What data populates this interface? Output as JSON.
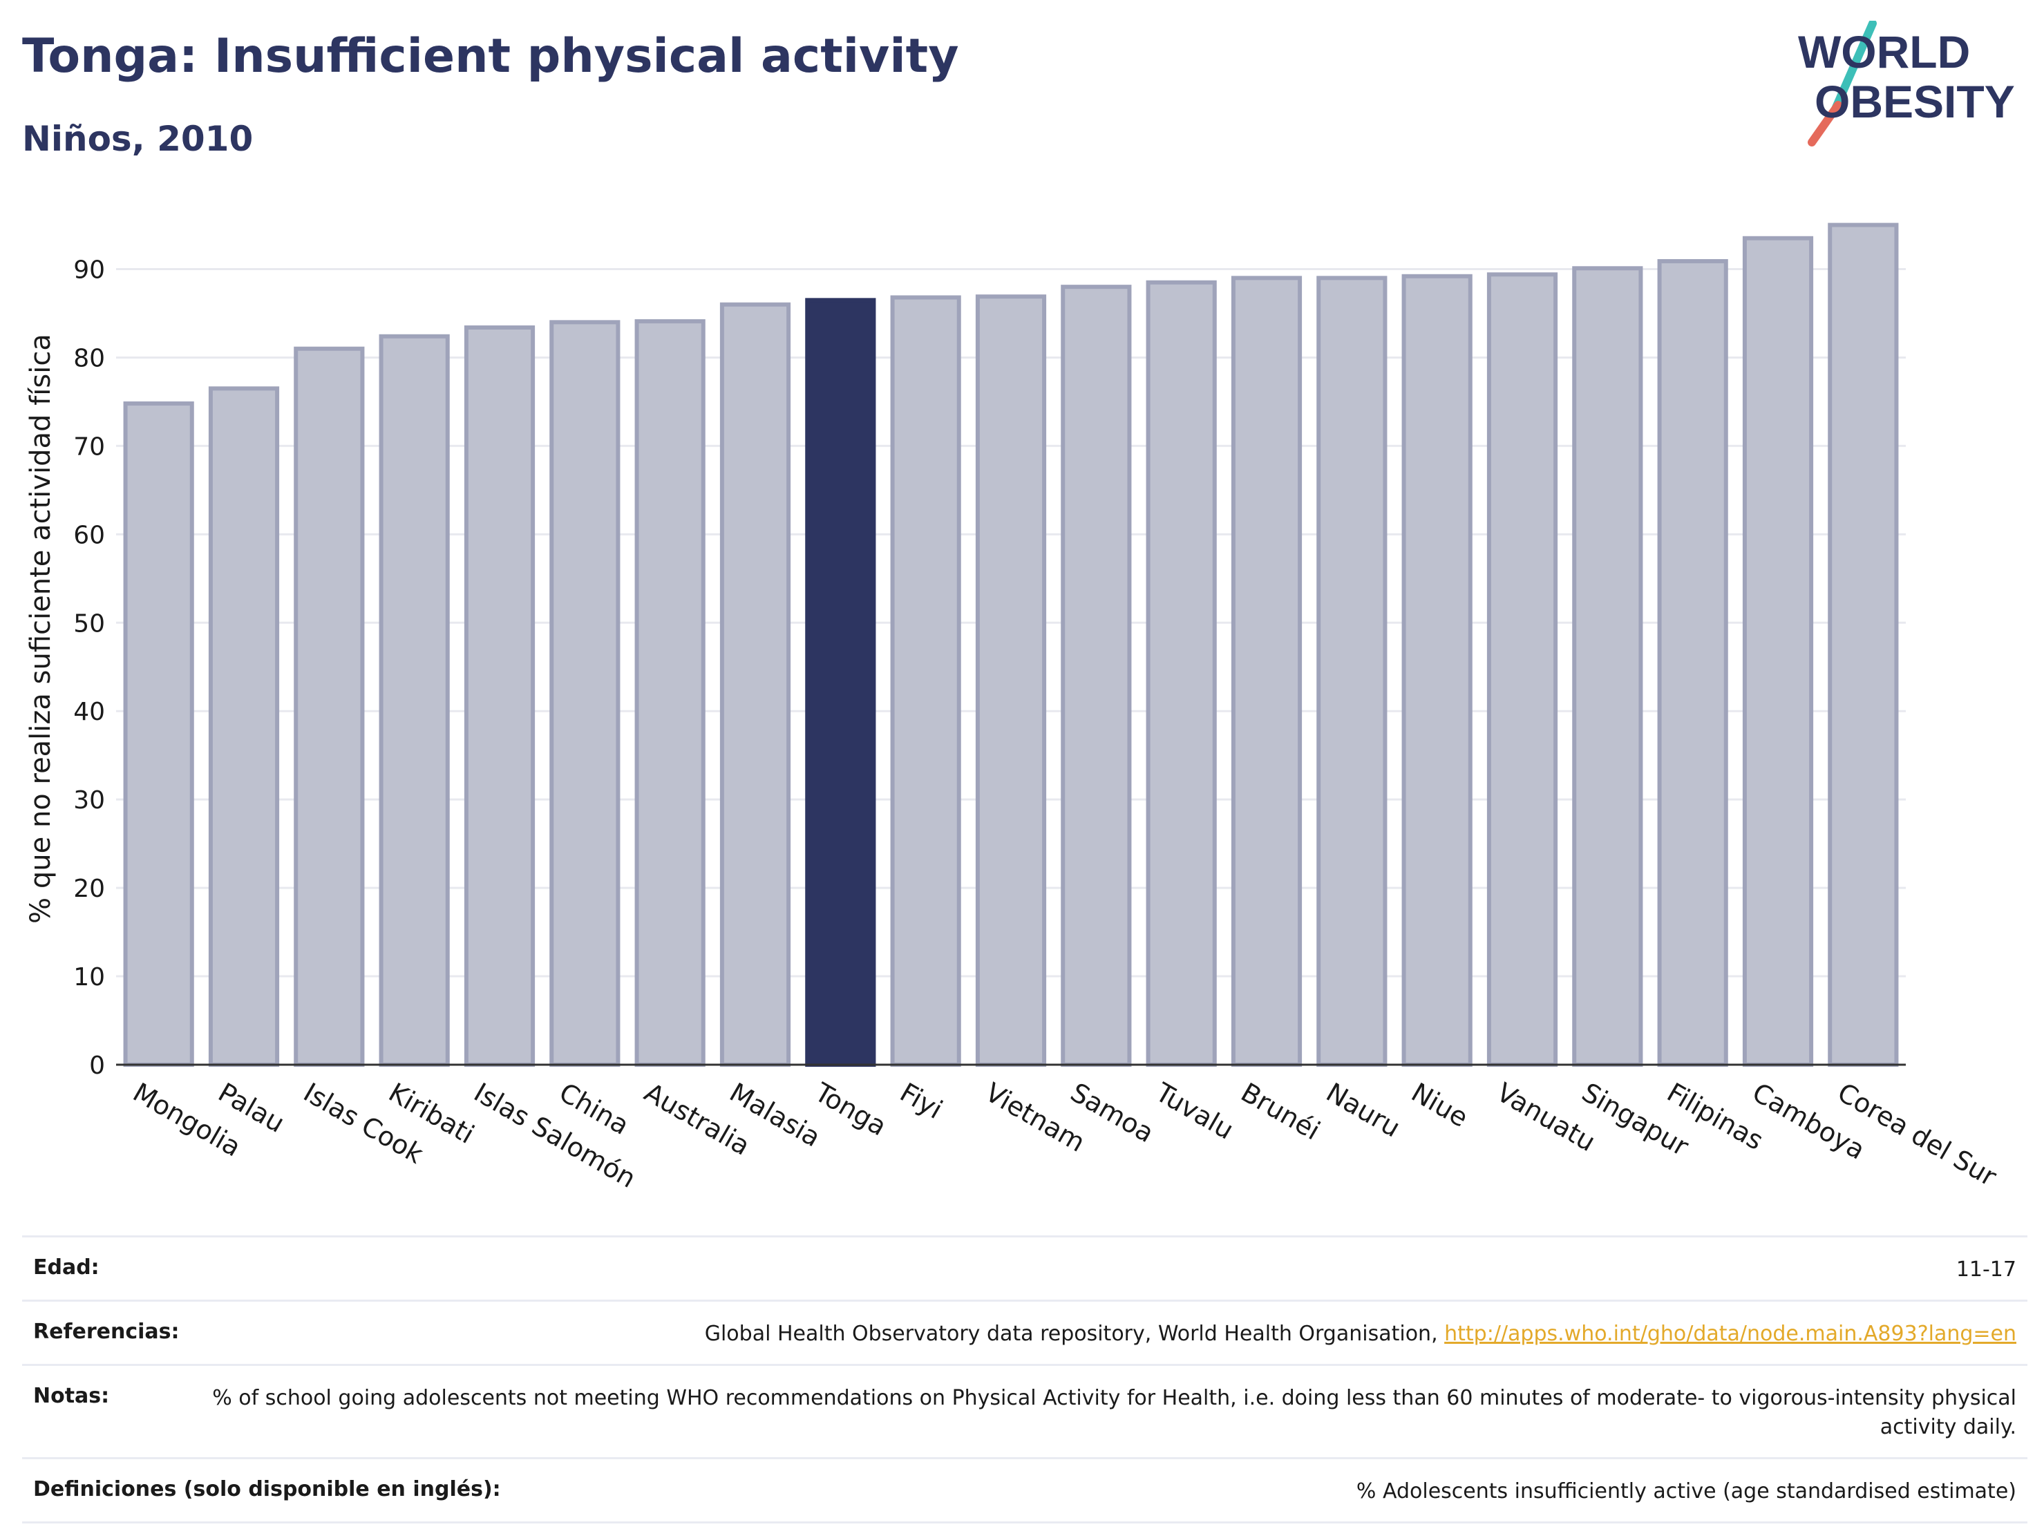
{
  "header": {
    "title": "Tonga: Insufficient physical activity",
    "subtitle": "Niños, 2010"
  },
  "logo": {
    "line1": "WORLD",
    "line2": "OBESITY",
    "colors": {
      "text": "#2d3561",
      "slash_top": "#3dbfb8",
      "slash_bottom": "#e56a5b"
    }
  },
  "colors": {
    "bar_default": "#bec1cf",
    "bar_default_border": "#9fa3ba",
    "bar_highlight": "#2d3561",
    "grid": "#e8e9ef",
    "axis": "#333333",
    "link": "#e3a92a"
  },
  "chart_data": {
    "type": "bar",
    "title": "Tonga: Insufficient physical activity",
    "subtitle": "Niños, 2010",
    "xlabel": "",
    "ylabel": "% que no realiza suficiente actividad física",
    "ylim": [
      0,
      97
    ],
    "yticks": [
      0,
      10,
      20,
      30,
      40,
      50,
      60,
      70,
      80,
      90
    ],
    "grid": true,
    "highlight": "Tonga",
    "categories": [
      "Mongolia",
      "Palau",
      "Islas Cook",
      "Kiribati",
      "Islas Salomón",
      "China",
      "Australia",
      "Malasia",
      "Tonga",
      "Fiyi",
      "Vietnam",
      "Samoa",
      "Tuvalu",
      "Brunéi",
      "Nauru",
      "Niue",
      "Vanuatu",
      "Singapur",
      "Filipinas",
      "Camboya",
      "Corea del Sur"
    ],
    "values": [
      74.8,
      76.5,
      81.0,
      82.4,
      83.4,
      84.0,
      84.1,
      86.0,
      86.5,
      86.8,
      86.9,
      88.0,
      88.5,
      89.0,
      89.0,
      89.2,
      89.4,
      90.1,
      90.9,
      93.5,
      95.0
    ]
  },
  "info": {
    "rows": [
      {
        "key": "Edad:",
        "value": "11-17"
      },
      {
        "key": "Referencias:",
        "value": "Global Health Observatory data repository, World Health Organisation, ",
        "link": "http://apps.who.int/gho/data/node.main.A893?lang=en"
      },
      {
        "key": "Notas:",
        "value": "% of school going adolescents not meeting WHO recommendations on Physical Activity for Health, i.e. doing less than 60 minutes of moderate- to vigorous-intensity physical activity daily."
      },
      {
        "key": "Definiciones (solo disponible en inglés):",
        "value": "% Adolescents insufficiently active (age standardised estimate)"
      }
    ]
  }
}
